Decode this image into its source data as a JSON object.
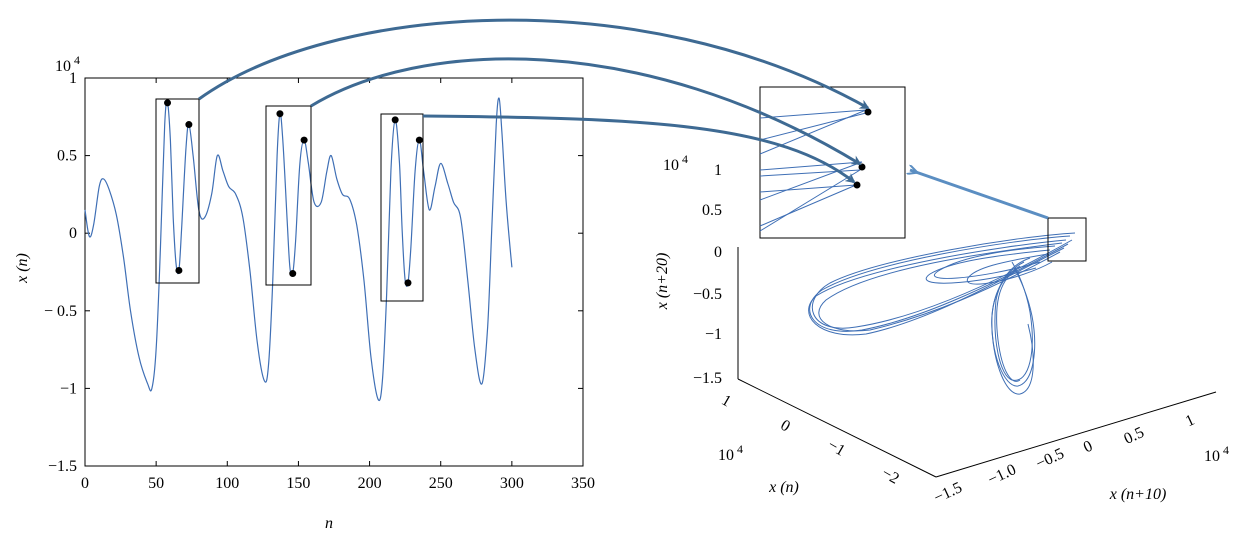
{
  "colors": {
    "line": "#3f6fb5",
    "arrow_dark": "#3e6a93",
    "arrow_light": "#5b8ec2",
    "frame": "#000000"
  },
  "chart_data": [
    {
      "type": "line",
      "xlabel": "n",
      "ylabel": "x (n)",
      "scale_label": "10 4",
      "xlim": [
        0,
        350
      ],
      "ylim": [
        -1.5,
        1
      ],
      "x_ticks": [
        "0",
        "50",
        "100",
        "150",
        "200",
        "250",
        "300",
        "350"
      ],
      "y_ticks": [
        "1",
        "0.5",
        "0",
        "− 0.5",
        "−1",
        "−1.5"
      ],
      "x_tick_values": [
        0,
        50,
        100,
        150,
        200,
        250,
        300,
        350
      ],
      "y_tick_values": [
        1,
        0.5,
        0,
        -0.5,
        -1,
        -1.5
      ],
      "series_points": [
        [
          0,
          0.15
        ],
        [
          3,
          -0.02
        ],
        [
          6,
          0.05
        ],
        [
          10,
          0.3
        ],
        [
          13,
          0.35
        ],
        [
          17,
          0.28
        ],
        [
          22,
          0.12
        ],
        [
          27,
          -0.15
        ],
        [
          32,
          -0.5
        ],
        [
          38,
          -0.8
        ],
        [
          44,
          -0.97
        ],
        [
          47,
          -1.0
        ],
        [
          50,
          -0.75
        ],
        [
          53,
          -0.1
        ],
        [
          56,
          0.7
        ],
        [
          58,
          0.84
        ],
        [
          60,
          0.6
        ],
        [
          62,
          0.1
        ],
        [
          64,
          -0.2
        ],
        [
          66,
          -0.24
        ],
        [
          68,
          0.05
        ],
        [
          71,
          0.55
        ],
        [
          73,
          0.7
        ],
        [
          76,
          0.5
        ],
        [
          80,
          0.15
        ],
        [
          84,
          0.1
        ],
        [
          89,
          0.25
        ],
        [
          93,
          0.5
        ],
        [
          97,
          0.4
        ],
        [
          101,
          0.3
        ],
        [
          106,
          0.25
        ],
        [
          111,
          0.1
        ],
        [
          116,
          -0.25
        ],
        [
          121,
          -0.7
        ],
        [
          126,
          -0.95
        ],
        [
          129,
          -0.85
        ],
        [
          132,
          -0.3
        ],
        [
          135,
          0.5
        ],
        [
          137,
          0.77
        ],
        [
          139,
          0.6
        ],
        [
          142,
          0.1
        ],
        [
          144,
          -0.22
        ],
        [
          146,
          -0.26
        ],
        [
          148,
          -0.05
        ],
        [
          151,
          0.45
        ],
        [
          154,
          0.6
        ],
        [
          157,
          0.45
        ],
        [
          161,
          0.2
        ],
        [
          166,
          0.2
        ],
        [
          170,
          0.4
        ],
        [
          173,
          0.5
        ],
        [
          177,
          0.35
        ],
        [
          181,
          0.25
        ],
        [
          186,
          0.22
        ],
        [
          191,
          0.05
        ],
        [
          196,
          -0.3
        ],
        [
          201,
          -0.8
        ],
        [
          206,
          -1.07
        ],
        [
          209,
          -0.95
        ],
        [
          212,
          -0.4
        ],
        [
          215,
          0.4
        ],
        [
          218,
          0.73
        ],
        [
          221,
          0.45
        ],
        [
          223,
          0.0
        ],
        [
          225,
          -0.3
        ],
        [
          227,
          -0.32
        ],
        [
          229,
          -0.1
        ],
        [
          232,
          0.4
        ],
        [
          235,
          0.6
        ],
        [
          238,
          0.4
        ],
        [
          242,
          0.15
        ],
        [
          246,
          0.3
        ],
        [
          250,
          0.45
        ],
        [
          255,
          0.32
        ],
        [
          259,
          0.2
        ],
        [
          264,
          0.1
        ],
        [
          269,
          -0.3
        ],
        [
          274,
          -0.75
        ],
        [
          279,
          -0.97
        ],
        [
          283,
          -0.6
        ],
        [
          286,
          0.05
        ],
        [
          289,
          0.7
        ],
        [
          291,
          0.87
        ],
        [
          293,
          0.65
        ],
        [
          296,
          0.2
        ],
        [
          300,
          -0.22
        ]
      ],
      "marked_points": [
        [
          58,
          0.84
        ],
        [
          66,
          -0.24
        ],
        [
          73,
          0.7
        ],
        [
          137,
          0.77
        ],
        [
          146,
          -0.26
        ],
        [
          154,
          0.6
        ],
        [
          218,
          0.73
        ],
        [
          227,
          -0.32
        ],
        [
          235,
          0.6
        ]
      ]
    },
    {
      "type": "line",
      "projection": "3d",
      "xlabel": "x (n)",
      "ylabel": "x (n+10)",
      "zlabel": "x (n+20)",
      "scale_label_z": "10 4",
      "scale_label_x": "10 4",
      "scale_label_y": "10 4",
      "z_ticks": [
        "1",
        "0.5",
        "0",
        "−0.5",
        "−1",
        "−1.5"
      ],
      "x_ticks": [
        "1",
        "0",
        "−1",
        "−2"
      ],
      "y_ticks": [
        "−1.5",
        "−1.0",
        "−0.5",
        "0",
        "0.5",
        "1"
      ],
      "inset_zoom_of": "upper-right region"
    }
  ]
}
